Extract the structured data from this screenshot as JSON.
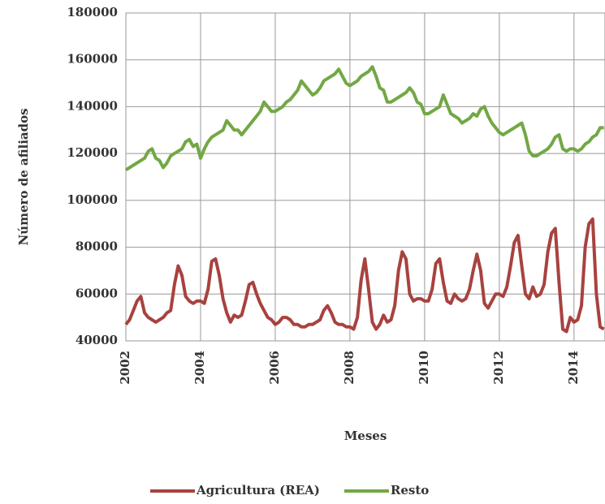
{
  "chart_data": {
    "type": "line",
    "x_label": "Meses",
    "y_label": "Número de afiliados",
    "x": [
      2002,
      2002.1,
      2002.2,
      2002.3,
      2002.4,
      2002.5,
      2002.6,
      2002.7,
      2002.8,
      2002.9,
      2003,
      2003.1,
      2003.2,
      2003.3,
      2003.4,
      2003.5,
      2003.6,
      2003.7,
      2003.8,
      2003.9,
      2004,
      2004.1,
      2004.2,
      2004.3,
      2004.4,
      2004.5,
      2004.6,
      2004.7,
      2004.8,
      2004.9,
      2005,
      2005.1,
      2005.2,
      2005.3,
      2005.4,
      2005.5,
      2005.6,
      2005.7,
      2005.8,
      2005.9,
      2006,
      2006.1,
      2006.2,
      2006.3,
      2006.4,
      2006.5,
      2006.6,
      2006.7,
      2006.8,
      2006.9,
      2007,
      2007.1,
      2007.2,
      2007.3,
      2007.4,
      2007.5,
      2007.6,
      2007.7,
      2007.8,
      2007.9,
      2008,
      2008.1,
      2008.2,
      2008.3,
      2008.4,
      2008.5,
      2008.6,
      2008.7,
      2008.8,
      2008.9,
      2009,
      2009.1,
      2009.2,
      2009.3,
      2009.4,
      2009.5,
      2009.6,
      2009.7,
      2009.8,
      2009.9,
      2010,
      2010.1,
      2010.2,
      2010.3,
      2010.4,
      2010.5,
      2010.6,
      2010.7,
      2010.8,
      2010.9,
      2011,
      2011.1,
      2011.2,
      2011.3,
      2011.4,
      2011.5,
      2011.6,
      2011.7,
      2011.8,
      2011.9,
      2012,
      2012.1,
      2012.2,
      2012.3,
      2012.4,
      2012.5,
      2012.6,
      2012.7,
      2012.8,
      2012.9,
      2013,
      2013.1,
      2013.2,
      2013.3,
      2013.4,
      2013.5,
      2013.6,
      2013.7,
      2013.8,
      2013.9,
      2014,
      2014.1,
      2014.2,
      2014.3,
      2014.4,
      2014.5,
      2014.6,
      2014.7,
      2014.8
    ],
    "series": [
      {
        "name": "Agricultura (REA)",
        "color": "#a8423f",
        "values": [
          47000,
          49000,
          53000,
          57000,
          59000,
          52000,
          50000,
          49000,
          48000,
          49000,
          50000,
          52000,
          53000,
          64000,
          72000,
          68000,
          59000,
          57000,
          56000,
          57000,
          57000,
          56000,
          62000,
          74000,
          75000,
          68000,
          58000,
          52000,
          48000,
          51000,
          50000,
          51000,
          57000,
          64000,
          65000,
          60000,
          56000,
          53000,
          50000,
          49000,
          47000,
          48000,
          50000,
          50000,
          49000,
          47000,
          47000,
          46000,
          46000,
          47000,
          47000,
          48000,
          49000,
          53000,
          55000,
          52000,
          48000,
          47000,
          47000,
          46000,
          46000,
          45000,
          50000,
          66000,
          75000,
          62000,
          48000,
          45000,
          47000,
          51000,
          48000,
          49000,
          55000,
          70000,
          78000,
          75000,
          60000,
          57000,
          58000,
          58000,
          57000,
          57000,
          62000,
          73000,
          75000,
          65000,
          57000,
          56000,
          60000,
          58000,
          57000,
          58000,
          62000,
          70000,
          77000,
          70000,
          56000,
          54000,
          57000,
          60000,
          60000,
          59000,
          63000,
          72000,
          82000,
          85000,
          72000,
          60000,
          58000,
          63000,
          59000,
          60000,
          64000,
          78000,
          86000,
          88000,
          65000,
          45000,
          44000,
          50000,
          48000,
          49000,
          55000,
          80000,
          90000,
          92000,
          60000,
          46000,
          45000
        ]
      },
      {
        "name": "Resto",
        "color": "#72a844",
        "values": [
          113000,
          114000,
          115000,
          116000,
          117000,
          118000,
          121000,
          122000,
          118000,
          117000,
          114000,
          116000,
          119000,
          120000,
          121000,
          122000,
          125000,
          126000,
          123000,
          124000,
          118000,
          122000,
          125000,
          127000,
          128000,
          129000,
          130000,
          134000,
          132000,
          130000,
          130000,
          128000,
          130000,
          132000,
          134000,
          136000,
          138000,
          142000,
          140000,
          138000,
          138000,
          139000,
          140000,
          142000,
          143000,
          145000,
          147000,
          151000,
          149000,
          147000,
          145000,
          146000,
          148000,
          151000,
          152000,
          153000,
          154000,
          156000,
          153000,
          150000,
          149000,
          150000,
          151000,
          153000,
          154000,
          155000,
          157000,
          153000,
          148000,
          147000,
          142000,
          142000,
          143000,
          144000,
          145000,
          146000,
          148000,
          146000,
          142000,
          141000,
          137000,
          137000,
          138000,
          139000,
          140000,
          145000,
          141000,
          137000,
          136000,
          135000,
          133000,
          134000,
          135000,
          137000,
          136000,
          139000,
          140000,
          136000,
          133000,
          131000,
          129000,
          128000,
          129000,
          130000,
          131000,
          132000,
          133000,
          128000,
          121000,
          119000,
          119000,
          120000,
          121000,
          122000,
          124000,
          127000,
          128000,
          122000,
          121000,
          122000,
          122000,
          121000,
          122000,
          124000,
          125000,
          127000,
          128000,
          131000,
          131000
        ]
      }
    ],
    "xlim": [
      2002,
      2014.83
    ],
    "xticks": [
      2002,
      2004,
      2006,
      2008,
      2010,
      2012,
      2014
    ],
    "ylim": [
      40000,
      180000
    ],
    "yticks": [
      40000,
      60000,
      80000,
      100000,
      120000,
      140000,
      160000,
      180000
    ],
    "grid": true,
    "legend": "bottom"
  }
}
